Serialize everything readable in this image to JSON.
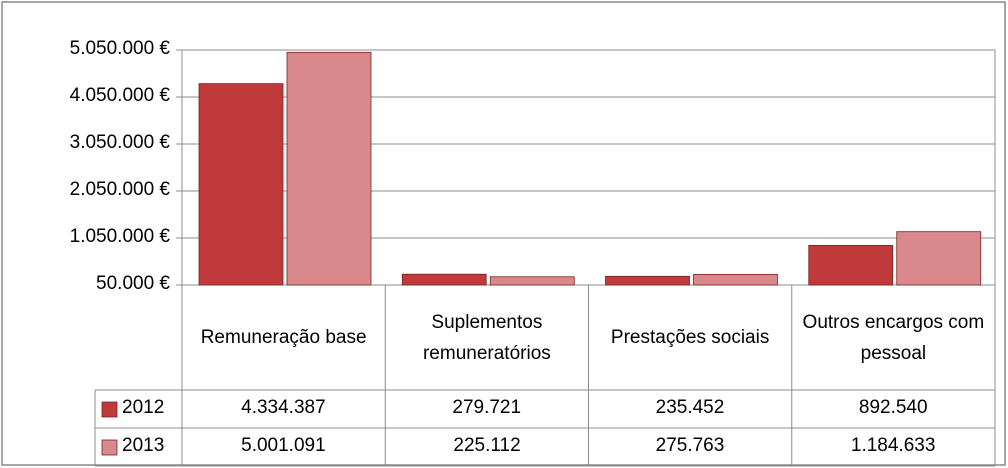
{
  "chart_data": {
    "type": "bar",
    "categories": [
      "Remuneração base",
      "Suplementos remuneratórios",
      "Prestações sociais",
      "Outros encargos com pessoal"
    ],
    "series": [
      {
        "name": "2012",
        "color": "#c0393b",
        "values": [
          4334387,
          279721,
          235452,
          892540
        ],
        "value_labels": [
          "4.334.387",
          "279.721",
          "235.452",
          "892.540"
        ]
      },
      {
        "name": "2013",
        "color": "#d9898b",
        "values": [
          5001091,
          225112,
          275763,
          1184633
        ],
        "value_labels": [
          "5.001.091",
          "225.112",
          "275.763",
          "1.184.633"
        ]
      }
    ],
    "ylim": [
      50000,
      5050000
    ],
    "yticks": [
      {
        "value": 50000,
        "label": "50.000 €"
      },
      {
        "value": 1050000,
        "label": "1.050.000 €"
      },
      {
        "value": 2050000,
        "label": "2.050.000 €"
      },
      {
        "value": 3050000,
        "label": "3.050.000 €"
      },
      {
        "value": 4050000,
        "label": "4.050.000 €"
      },
      {
        "value": 5050000,
        "label": "5.050.000 €"
      }
    ],
    "grid": true
  }
}
